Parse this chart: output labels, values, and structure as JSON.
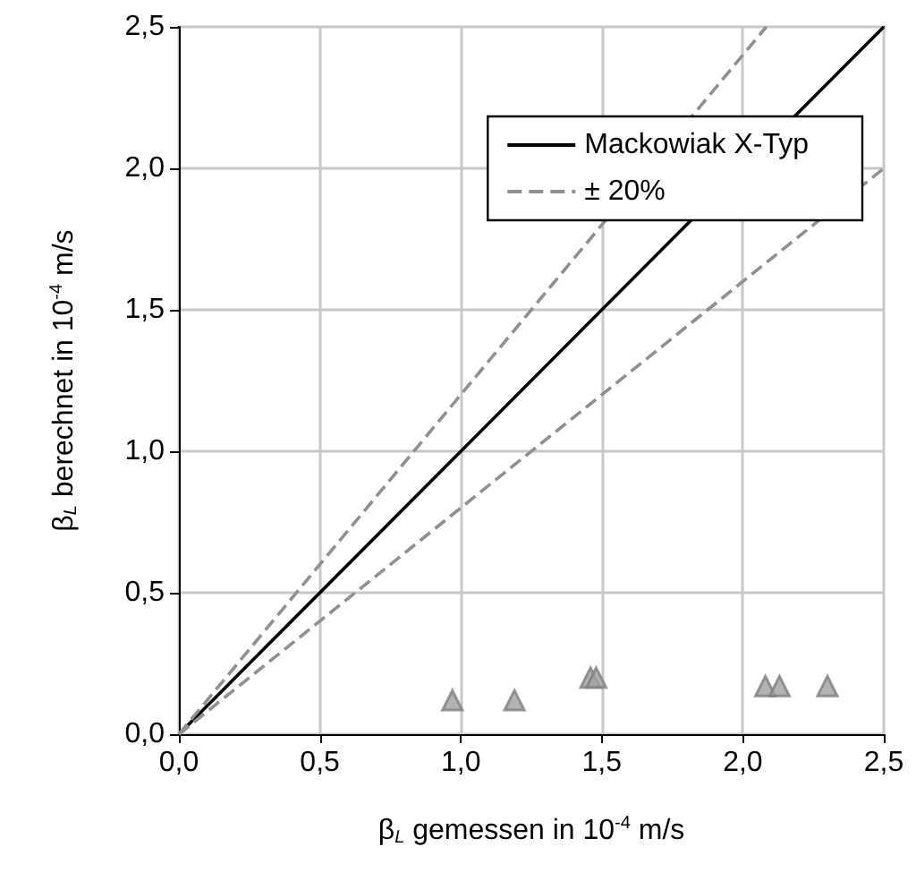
{
  "chart_data": {
    "type": "scatter",
    "xlabel": "β$_{L}$ gemessen in 10$^{-4}$ m/s",
    "ylabel": "β$_{L}$ berechnet in 10$^{-4}$ m/s",
    "xlim": [
      0,
      2.5
    ],
    "ylim": [
      0,
      2.5
    ],
    "xticks": [
      {
        "value": 0,
        "label": "0,0"
      },
      {
        "value": 0.5,
        "label": "0,5"
      },
      {
        "value": 1,
        "label": "1,0"
      },
      {
        "value": 1.5,
        "label": "1,5"
      },
      {
        "value": 2,
        "label": "2,0"
      },
      {
        "value": 2.5,
        "label": "2,5"
      }
    ],
    "yticks": [
      {
        "value": 0,
        "label": "0,0"
      },
      {
        "value": 0.5,
        "label": "0,5"
      },
      {
        "value": 1,
        "label": "1,0"
      },
      {
        "value": 1.5,
        "label": "1,5"
      },
      {
        "value": 2,
        "label": "2,0"
      },
      {
        "value": 2.5,
        "label": "2,5"
      }
    ],
    "grid": true,
    "legend": "top right",
    "series": [
      {
        "marker": "triangle",
        "color": "#a0a0a0",
        "x": [
          0.97,
          1.19,
          1.46,
          1.48,
          2.08,
          2.13,
          2.3
        ],
        "values": [
          0.12,
          0.12,
          0.2,
          0.2,
          0.17,
          0.17,
          0.17
        ]
      },
      {
        "type": "line",
        "name": "Mackowiak X-Typ",
        "color": "#000000",
        "line_style": "solid",
        "marker": "none",
        "x": [
          0,
          2.5
        ],
        "values": [
          0,
          2.5
        ]
      },
      {
        "type": "line",
        "name": "± 20%",
        "color": "#909090",
        "line_style": "dashed",
        "marker": "none",
        "x": [
          0,
          2.083
        ],
        "values": [
          0,
          2.5
        ]
      },
      {
        "type": "line",
        "color": "#909090",
        "line_style": "dashed",
        "marker": "none",
        "x": [
          0,
          2.5
        ],
        "values": [
          0,
          2.0
        ]
      }
    ]
  }
}
